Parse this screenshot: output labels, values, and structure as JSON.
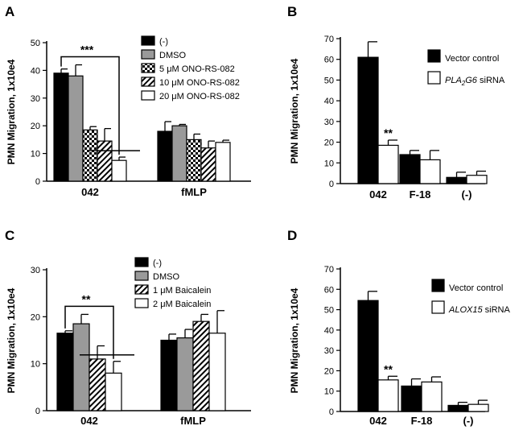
{
  "chart_data": [
    {
      "panel": "A",
      "type": "bar",
      "ylabel": "PMN Migration, 1x10e4",
      "ylim": [
        0,
        50
      ],
      "yticks": [
        0,
        10,
        20,
        30,
        40,
        50
      ],
      "categories": [
        "042",
        "fMLP"
      ],
      "series": [
        {
          "name": "(-)",
          "fill": "black",
          "values": [
            39,
            18
          ],
          "errors": [
            1.5,
            3.5
          ]
        },
        {
          "name": "DMSO",
          "fill": "gray",
          "values": [
            38,
            20
          ],
          "errors": [
            4,
            0.5
          ]
        },
        {
          "name_prefix": "5 ",
          "name_mu": "μ",
          "name_suffix": "M ONO-RS-082",
          "fill": "checker",
          "values": [
            18.5,
            15
          ],
          "errors": [
            1.2,
            2
          ]
        },
        {
          "name_prefix": "10 ",
          "name_mu": "μ",
          "name_suffix": "M ONO-RS-082",
          "fill": "hatch",
          "values": [
            14.5,
            12
          ],
          "errors": [
            4.5,
            2.5
          ]
        },
        {
          "name_prefix": "20 ",
          "name_mu": "μ",
          "name_suffix": "M ONO-RS-082",
          "fill": "white",
          "values": [
            7.5,
            14
          ],
          "errors": [
            1.2,
            0.8
          ]
        }
      ],
      "significance": {
        "label": "***",
        "category": 0,
        "from_series": 0,
        "to_series": 4
      }
    },
    {
      "panel": "B",
      "type": "bar",
      "ylabel": "PMN Migration, 1x10e4",
      "ylim": [
        0,
        70
      ],
      "yticks": [
        0,
        10,
        20,
        30,
        40,
        50,
        60,
        70
      ],
      "categories": [
        "042",
        "F-18",
        "(-)"
      ],
      "series": [
        {
          "name": "Vector control",
          "fill": "black",
          "values": [
            61,
            14,
            3
          ],
          "errors": [
            7.5,
            2,
            2.5
          ]
        },
        {
          "name_prefix": "PLA",
          "name_sub": "2",
          "name_mid": "G6",
          "name_suffix": " siRNA",
          "fill": "white",
          "values": [
            18.5,
            11.5,
            4
          ],
          "errors": [
            2.5,
            4.5,
            2
          ]
        }
      ],
      "significance": {
        "label": "**",
        "category": 0,
        "series": 1
      }
    },
    {
      "panel": "C",
      "type": "bar",
      "ylabel": "PMN Migration, 1x10e4",
      "ylim": [
        0,
        30
      ],
      "yticks": [
        0,
        10,
        20,
        30
      ],
      "categories": [
        "042",
        "fMLP"
      ],
      "series": [
        {
          "name": "(-)",
          "fill": "black",
          "values": [
            16.5,
            15
          ],
          "errors": [
            0.5,
            1.3
          ]
        },
        {
          "name": "DMSO",
          "fill": "gray",
          "values": [
            18.5,
            15.5
          ],
          "errors": [
            2,
            1.8
          ]
        },
        {
          "name_prefix": "1 ",
          "name_mu": "μ",
          "name_suffix": "M Baicalein",
          "fill": "hatch",
          "values": [
            11,
            19
          ],
          "errors": [
            2.8,
            1.5
          ]
        },
        {
          "name_prefix": "2 ",
          "name_mu": "μ",
          "name_suffix": "M Baicalein",
          "fill": "white",
          "values": [
            8,
            16.5
          ],
          "errors": [
            2.5,
            4.8
          ]
        }
      ],
      "significance": {
        "label": "**",
        "category": 0,
        "from_series": 0,
        "to_series": 3
      }
    },
    {
      "panel": "D",
      "type": "bar",
      "ylabel": "PMN Migration, 1x10e4",
      "ylim": [
        0,
        70
      ],
      "yticks": [
        0,
        10,
        20,
        30,
        40,
        50,
        60,
        70
      ],
      "categories": [
        "042",
        "F-18",
        "(-)"
      ],
      "series": [
        {
          "name": "Vector control",
          "fill": "black",
          "values": [
            54.5,
            12.5,
            3
          ],
          "errors": [
            4.5,
            3.5,
            1.5
          ]
        },
        {
          "name_prefix": "ALOX15",
          "name_suffix": " siRNA",
          "fill": "white",
          "values": [
            15.5,
            14.5,
            3.5
          ],
          "errors": [
            1.8,
            2.5,
            2
          ]
        }
      ],
      "significance": {
        "label": "**",
        "category": 0,
        "series": 1
      }
    }
  ]
}
